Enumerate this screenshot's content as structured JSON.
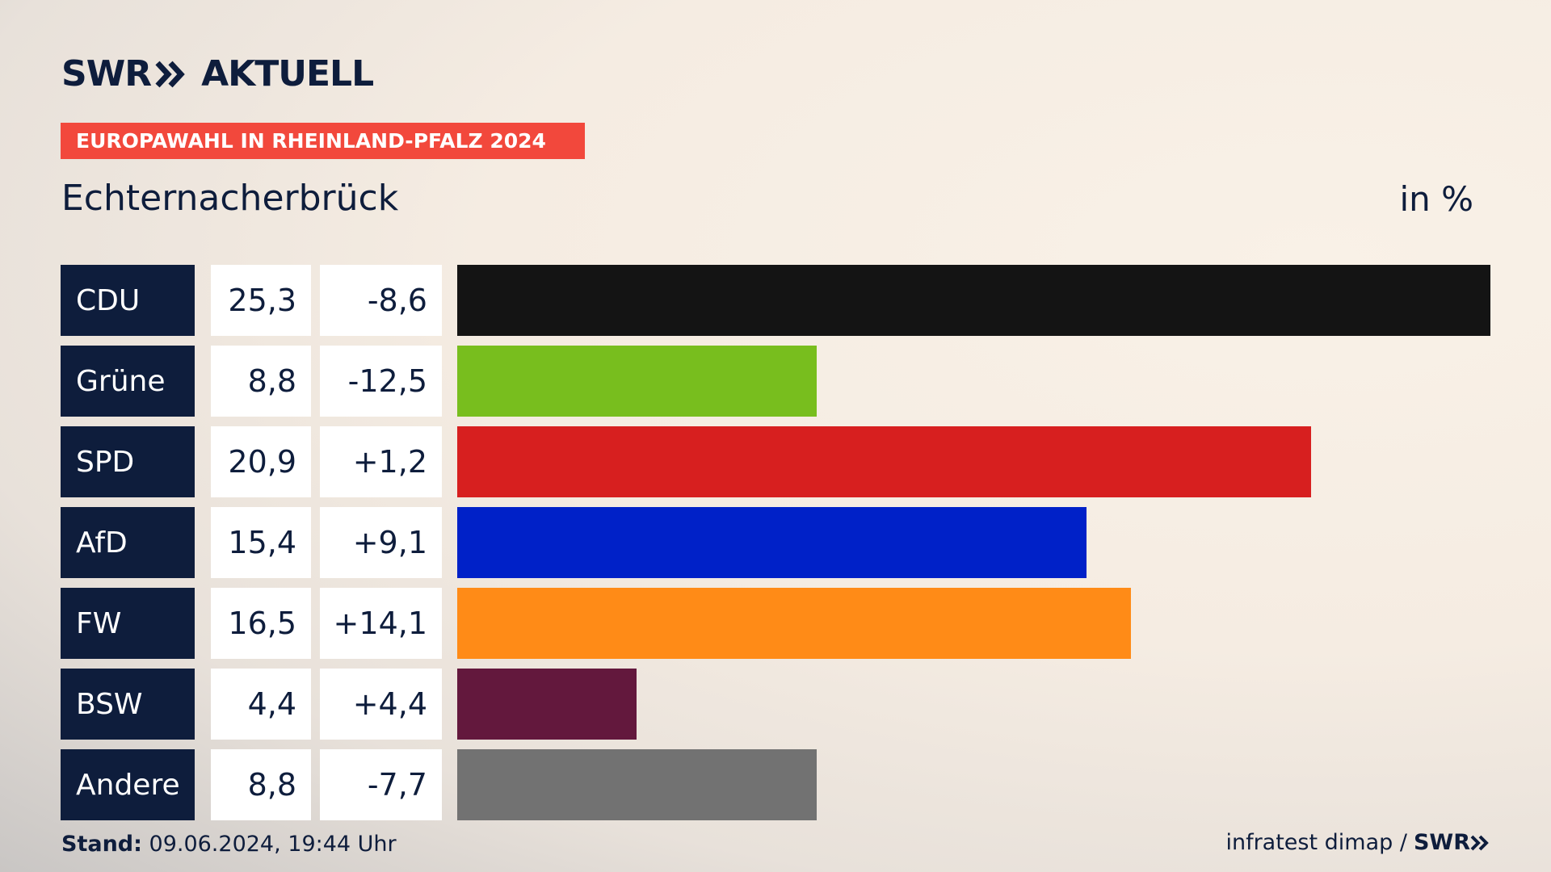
{
  "header": {
    "brand": "SWR",
    "section": "AKTUELL",
    "banner": "EUROPAWAHL IN RHEINLAND-PFALZ 2024",
    "place": "Echternacherbrück",
    "unit": "in %"
  },
  "chart_data": {
    "type": "bar",
    "orientation": "horizontal",
    "title": "Echternacherbrück",
    "unit": "in %",
    "xlim": [
      0,
      25.3
    ],
    "categories": [
      "CDU",
      "Grüne",
      "SPD",
      "AfD",
      "FW",
      "BSW",
      "Andere"
    ],
    "values": [
      25.3,
      8.8,
      20.9,
      15.4,
      16.5,
      4.4,
      8.8
    ],
    "value_labels": [
      "25,3",
      "8,8",
      "20,9",
      "15,4",
      "16,5",
      "4,4",
      "8,8"
    ],
    "diff_labels": [
      "-8,6",
      "-12,5",
      "+1,2",
      "+9,1",
      "+14,1",
      "+4,4",
      "-7,7"
    ],
    "colors": [
      "#141414",
      "#78be1e",
      "#d71f1f",
      "#0021c8",
      "#ff8b17",
      "#63183d",
      "#727272"
    ]
  },
  "footer": {
    "stand_label": "Stand:",
    "stand_value": "09.06.2024, 19:44 Uhr",
    "source": "infratest dimap /",
    "brand": "SWR"
  }
}
